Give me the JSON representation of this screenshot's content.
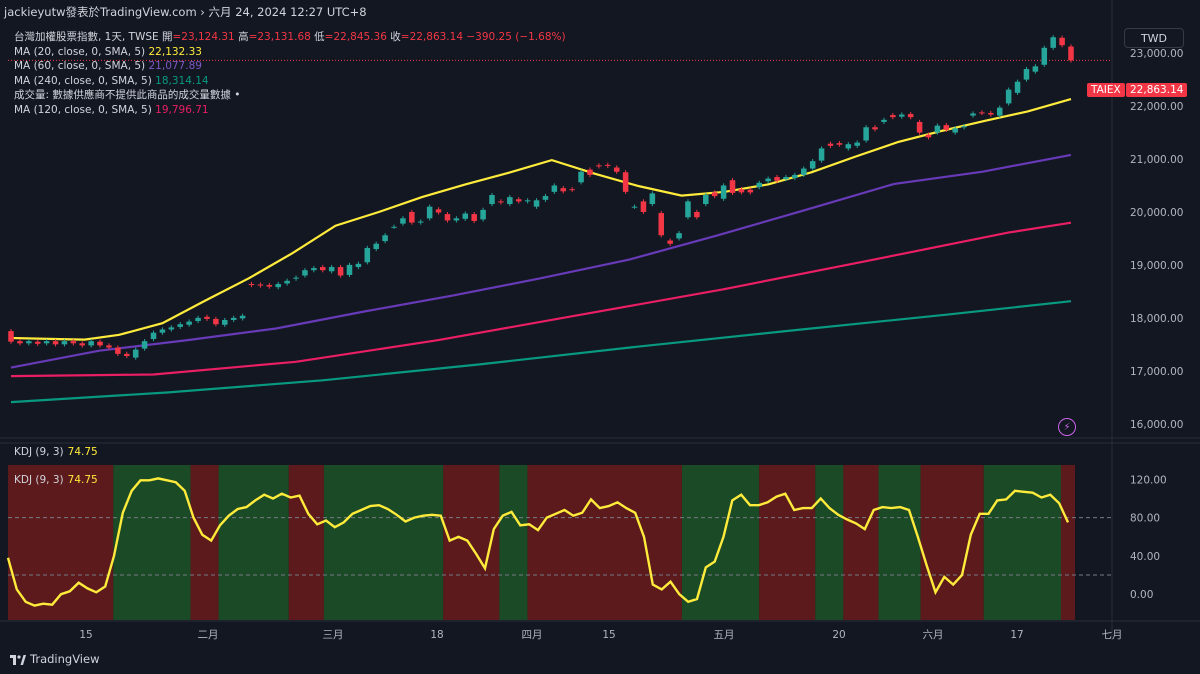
{
  "header": {
    "text": "jackieyutw發表於TradingView.com › 六月 24, 2024 12:27 UTC+8"
  },
  "legend": {
    "ohlc_prefix": "台灣加權股票指數, 1天, TWSE",
    "open_label": "開",
    "open": "=23,124.31",
    "high_label": "高",
    "high": "=23,131.68",
    "low_label": "低",
    "low": "=22,845.36",
    "close_label": "收",
    "close": "=22,863.14",
    "change": "−390.25 (−1.68%)",
    "ma20_label": "MA (20, close, 0, SMA, 5)",
    "ma20_value": "22,132.33",
    "ma20_color": "#ffeb3b",
    "ma60_label": "MA (60, close, 0, SMA, 5)",
    "ma60_value": "21,077.89",
    "ma60_color": "#673ab7",
    "ma240_label": "MA (240, close, 0, SMA, 5)",
    "ma240_value": "18,314.14",
    "ma240_color": "#089981",
    "volume_note": "成交量: 數據供應商不提供此商品的成交量數據 •",
    "ma120_label": "MA (120, close, 0, SMA, 5)",
    "ma120_value": "19,796.71",
    "ma120_color": "#e91e63"
  },
  "currency": "TWD",
  "symbol_tag": "TAIEX",
  "last_price_tag": "22,863.14",
  "kdj": {
    "label_top": "KDJ (9, 3)",
    "value_top": "74.75",
    "label_inner": "KDJ (9, 3)",
    "value_inner": "74.75"
  },
  "brand": "TradingView",
  "colors": {
    "background": "#131722",
    "up": "#26a69a",
    "down": "#f23645",
    "kdj_line": "#ffeb3b",
    "kdj_bull_zone": "#1b4a26",
    "kdj_bear_zone": "#5c1a1c"
  },
  "chart_data": [
    {
      "type": "candlestick",
      "title": "台灣加權股票指數, 1天, TWSE",
      "y_ticks": [
        "16,000.00",
        "17,000.00",
        "18,000.00",
        "19,000.00",
        "20,000.00",
        "21,000.00",
        "22,000.00",
        "23,000.00"
      ],
      "ylim": [
        15750,
        23550
      ],
      "x_ticks": [
        "15",
        "二月",
        "三月",
        "18",
        "四月",
        "15",
        "五月",
        "20",
        "六月",
        "17",
        "七月"
      ],
      "candles": [
        {
          "o": 17750,
          "c": 17550
        },
        {
          "o": 17560,
          "c": 17520
        },
        {
          "o": 17520,
          "c": 17560
        },
        {
          "o": 17550,
          "c": 17510
        },
        {
          "o": 17520,
          "c": 17560
        },
        {
          "o": 17560,
          "c": 17500
        },
        {
          "o": 17500,
          "c": 17560
        },
        {
          "o": 17560,
          "c": 17520
        },
        {
          "o": 17520,
          "c": 17480
        },
        {
          "o": 17480,
          "c": 17560
        },
        {
          "o": 17550,
          "c": 17480
        },
        {
          "o": 17480,
          "c": 17440
        },
        {
          "o": 17440,
          "c": 17320
        },
        {
          "o": 17320,
          "c": 17280
        },
        {
          "o": 17250,
          "c": 17400
        },
        {
          "o": 17420,
          "c": 17560
        },
        {
          "o": 17600,
          "c": 17720
        },
        {
          "o": 17720,
          "c": 17780
        },
        {
          "o": 17780,
          "c": 17820
        },
        {
          "o": 17830,
          "c": 17880
        },
        {
          "o": 17870,
          "c": 17930
        },
        {
          "o": 17940,
          "c": 18000
        },
        {
          "o": 18020,
          "c": 17980
        },
        {
          "o": 17980,
          "c": 17880
        },
        {
          "o": 17870,
          "c": 17960
        },
        {
          "o": 17960,
          "c": 18000
        },
        {
          "o": 17990,
          "c": 18040
        },
        {
          "o": 18640,
          "c": 18620
        },
        {
          "o": 18630,
          "c": 18610
        },
        {
          "o": 18620,
          "c": 18590
        },
        {
          "o": 18580,
          "c": 18640
        },
        {
          "o": 18650,
          "c": 18700
        },
        {
          "o": 18740,
          "c": 18760
        },
        {
          "o": 18800,
          "c": 18900
        },
        {
          "o": 18900,
          "c": 18940
        },
        {
          "o": 18960,
          "c": 18900
        },
        {
          "o": 18880,
          "c": 18960
        },
        {
          "o": 18960,
          "c": 18800
        },
        {
          "o": 18810,
          "c": 19000
        },
        {
          "o": 18960,
          "c": 19020
        },
        {
          "o": 19050,
          "c": 19320
        },
        {
          "o": 19300,
          "c": 19400
        },
        {
          "o": 19450,
          "c": 19560
        },
        {
          "o": 19720,
          "c": 19720
        },
        {
          "o": 19780,
          "c": 19880
        },
        {
          "o": 20000,
          "c": 19800
        },
        {
          "o": 19800,
          "c": 19820
        },
        {
          "o": 19880,
          "c": 20100
        },
        {
          "o": 20050,
          "c": 19990
        },
        {
          "o": 19960,
          "c": 19840
        },
        {
          "o": 19840,
          "c": 19880
        },
        {
          "o": 19870,
          "c": 19970
        },
        {
          "o": 19960,
          "c": 19830
        },
        {
          "o": 19860,
          "c": 20040
        },
        {
          "o": 20150,
          "c": 20320
        },
        {
          "o": 20200,
          "c": 20180
        },
        {
          "o": 20150,
          "c": 20280
        },
        {
          "o": 20240,
          "c": 20200
        },
        {
          "o": 20200,
          "c": 20220
        },
        {
          "o": 20100,
          "c": 20220
        },
        {
          "o": 20230,
          "c": 20300
        },
        {
          "o": 20380,
          "c": 20500
        },
        {
          "o": 20450,
          "c": 20390
        },
        {
          "o": 20430,
          "c": 20420
        },
        {
          "o": 20560,
          "c": 20760
        },
        {
          "o": 20800,
          "c": 20700
        },
        {
          "o": 20880,
          "c": 20860
        },
        {
          "o": 20890,
          "c": 20870
        },
        {
          "o": 20840,
          "c": 20760
        },
        {
          "o": 20750,
          "c": 20380
        },
        {
          "o": 20100,
          "c": 20100
        },
        {
          "o": 20200,
          "c": 20000
        },
        {
          "o": 20150,
          "c": 20350
        },
        {
          "o": 19980,
          "c": 19560
        },
        {
          "o": 19460,
          "c": 19400
        },
        {
          "o": 19500,
          "c": 19600
        },
        {
          "o": 19900,
          "c": 20200
        },
        {
          "o": 20000,
          "c": 19900
        },
        {
          "o": 20150,
          "c": 20320
        },
        {
          "o": 20370,
          "c": 20300
        },
        {
          "o": 20250,
          "c": 20500
        },
        {
          "o": 20600,
          "c": 20360
        },
        {
          "o": 20430,
          "c": 20370
        },
        {
          "o": 20420,
          "c": 20370
        },
        {
          "o": 20470,
          "c": 20550
        },
        {
          "o": 20580,
          "c": 20630
        },
        {
          "o": 20660,
          "c": 20590
        },
        {
          "o": 20620,
          "c": 20660
        },
        {
          "o": 20640,
          "c": 20700
        },
        {
          "o": 20700,
          "c": 20820
        },
        {
          "o": 20820,
          "c": 20960
        },
        {
          "o": 20970,
          "c": 21200
        },
        {
          "o": 21290,
          "c": 21250
        },
        {
          "o": 21300,
          "c": 21270
        },
        {
          "o": 21200,
          "c": 21280
        },
        {
          "o": 21250,
          "c": 21310
        },
        {
          "o": 21350,
          "c": 21600
        },
        {
          "o": 21600,
          "c": 21560
        },
        {
          "o": 21700,
          "c": 21740
        },
        {
          "o": 21830,
          "c": 21790
        },
        {
          "o": 21800,
          "c": 21840
        },
        {
          "o": 21850,
          "c": 21790
        },
        {
          "o": 21700,
          "c": 21500
        },
        {
          "o": 21460,
          "c": 21410
        },
        {
          "o": 21500,
          "c": 21630
        },
        {
          "o": 21640,
          "c": 21550
        },
        {
          "o": 21500,
          "c": 21580
        },
        {
          "o": 21600,
          "c": 21620
        },
        {
          "o": 21820,
          "c": 21860
        },
        {
          "o": 21880,
          "c": 21870
        },
        {
          "o": 21870,
          "c": 21840
        },
        {
          "o": 21820,
          "c": 21970
        },
        {
          "o": 22050,
          "c": 22310
        },
        {
          "o": 22250,
          "c": 22460
        },
        {
          "o": 22500,
          "c": 22700
        },
        {
          "o": 22650,
          "c": 22750
        },
        {
          "o": 22780,
          "c": 23100
        },
        {
          "o": 23100,
          "c": 23300
        },
        {
          "o": 23290,
          "c": 23150
        },
        {
          "o": 23124.31,
          "c": 22863.14
        }
      ],
      "series": [
        {
          "name": "MA (20, close, 0, SMA, 5)",
          "color": "#ffeb3b",
          "values": [
            [
              0,
              17620
            ],
            [
              10,
              17600
            ],
            [
              17,
              17590
            ],
            [
              25,
              17680
            ],
            [
              35,
              17900
            ],
            [
              45,
              18330
            ],
            [
              55,
              18750
            ],
            [
              65,
              19220
            ],
            [
              75,
              19740
            ],
            [
              85,
              20000
            ],
            [
              95,
              20280
            ],
            [
              105,
              20520
            ],
            [
              115,
              20740
            ],
            [
              125,
              20980
            ],
            [
              135,
              20720
            ],
            [
              145,
              20490
            ],
            [
              155,
              20310
            ],
            [
              165,
              20380
            ],
            [
              175,
              20520
            ],
            [
              185,
              20750
            ],
            [
              195,
              21040
            ],
            [
              205,
              21320
            ],
            [
              215,
              21530
            ],
            [
              225,
              21720
            ],
            [
              235,
              21900
            ],
            [
              245,
              22132
            ]
          ]
        },
        {
          "name": "MA (60, close, 0, SMA, 5)",
          "color": "#673ab7",
          "values": [
            [
              0,
              17060
            ],
            [
              25,
              17380
            ],
            [
              50,
              17580
            ],
            [
              75,
              17800
            ],
            [
              100,
              18120
            ],
            [
              125,
              18420
            ],
            [
              150,
              18750
            ],
            [
              175,
              19100
            ],
            [
              200,
              19560
            ],
            [
              225,
              20040
            ],
            [
              250,
              20530
            ],
            [
              275,
              20760
            ],
            [
              300,
              21078
            ]
          ]
        },
        {
          "name": "MA (120, close, 0, SMA, 5)",
          "color": "#e91e63",
          "values": [
            [
              0,
              16900
            ],
            [
              50,
              16930
            ],
            [
              100,
              17170
            ],
            [
              150,
              17580
            ],
            [
              200,
              18060
            ],
            [
              250,
              18540
            ],
            [
              300,
              19070
            ],
            [
              350,
              19610
            ],
            [
              372,
              19797
            ]
          ]
        },
        {
          "name": "MA (240, close, 0, SMA, 5)",
          "color": "#089981",
          "values": [
            [
              0,
              16410
            ],
            [
              50,
              16590
            ],
            [
              100,
              16820
            ],
            [
              150,
              17120
            ],
            [
              200,
              17450
            ],
            [
              250,
              17760
            ],
            [
              300,
              18060
            ],
            [
              340,
              18314
            ]
          ]
        }
      ]
    },
    {
      "type": "line",
      "title": "KDJ (9, 3)",
      "y_ticks": [
        "120.00",
        "80.00",
        "40.00",
        "0.00"
      ],
      "ylim": [
        -27,
        135
      ],
      "hlines": [
        80,
        20
      ],
      "series": [
        {
          "name": "KDJ (9, 3)",
          "color": "#ffeb3b",
          "values": [
            38,
            5,
            -8,
            -12,
            -10,
            -11,
            0,
            3,
            12,
            6,
            2,
            8,
            40,
            85,
            108,
            119,
            119,
            121,
            119,
            117,
            108,
            80,
            62,
            56,
            72,
            82,
            89,
            91,
            98,
            104,
            100,
            105,
            101,
            103,
            84,
            73,
            77,
            70,
            75,
            84,
            88,
            92,
            93,
            89,
            83,
            76,
            80,
            82,
            83,
            82,
            56,
            60,
            56,
            42,
            27,
            68,
            82,
            86,
            72,
            73,
            67,
            80,
            84,
            88,
            82,
            85,
            99,
            90,
            92,
            96,
            90,
            85,
            60,
            10,
            5,
            13,
            0,
            -8,
            -5,
            28,
            34,
            60,
            98,
            104,
            93,
            93,
            96,
            102,
            105,
            88,
            90,
            90,
            100,
            90,
            83,
            78,
            74,
            68,
            88,
            91,
            90,
            91,
            88,
            60,
            30,
            2,
            18,
            10,
            20,
            62,
            84,
            84,
            98,
            99,
            108,
            107,
            106,
            101,
            104,
            95,
            75
          ]
        }
      ],
      "zones": [
        "bear",
        "bull",
        "bear",
        "bull",
        "bear",
        "bull",
        "bear",
        "bull",
        "bear",
        "bull",
        "bear",
        "bull",
        "bear",
        "bull",
        "bear",
        "bull",
        "bear"
      ],
      "zone_bounds": [
        0,
        15,
        26,
        30,
        40,
        45,
        62,
        70,
        74,
        96,
        107,
        115,
        119,
        124,
        130,
        139,
        150,
        152
      ]
    }
  ]
}
